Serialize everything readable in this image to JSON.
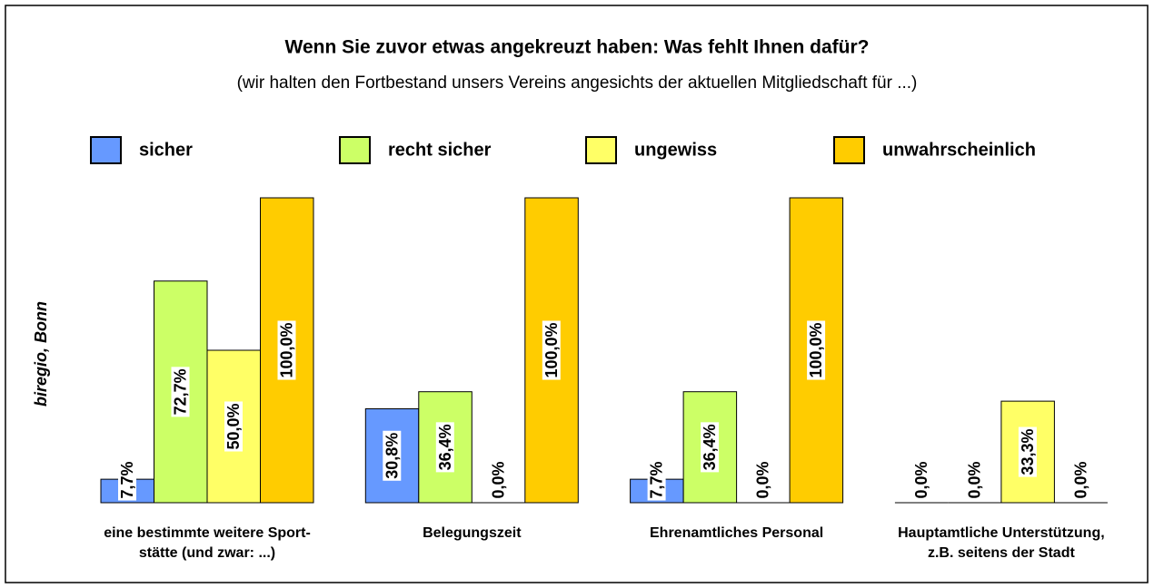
{
  "chart_data": {
    "type": "bar",
    "title": "Wenn Sie zuvor etwas angekreuzt haben: Was fehlt Ihnen dafür?",
    "subtitle": "(wir halten den Fortbestand unsers Vereins angesichts der aktuellen Mitgliedschaft für ...)",
    "y_label": "biregio, Bonn",
    "categories": [
      [
        "eine bestimmte weitere Sport-",
        "stätte (und zwar: ...)"
      ],
      [
        "Belegungszeit"
      ],
      [
        "Ehrenamtliches Personal"
      ],
      [
        "Hauptamtliche Unterstützung,",
        "z.B. seitens der Stadt"
      ]
    ],
    "ylim": [
      0,
      100
    ],
    "series": [
      {
        "name": "sicher",
        "color": "#6699ff",
        "values": [
          7.7,
          30.8,
          7.7,
          0
        ],
        "value_labels": [
          "7,7%",
          "30,8%",
          "7,7%",
          "0,0%"
        ]
      },
      {
        "name": "recht sicher",
        "color": "#ccff66",
        "values": [
          72.7,
          36.4,
          36.4,
          0
        ],
        "value_labels": [
          "72,7%",
          "36,4%",
          "36,4%",
          "0,0%"
        ]
      },
      {
        "name": "ungewiss",
        "color": "#ffff66",
        "values": [
          50,
          0,
          0,
          33.3
        ],
        "value_labels": [
          "50,0%",
          "0,0%",
          "0,0%",
          "33,3%"
        ]
      },
      {
        "name": "unwahrscheinlich",
        "color": "#ffcc00",
        "values": [
          100,
          100,
          100,
          0
        ],
        "value_labels": [
          "100,0%",
          "100,0%",
          "100,0%",
          "0,0%"
        ]
      }
    ]
  }
}
